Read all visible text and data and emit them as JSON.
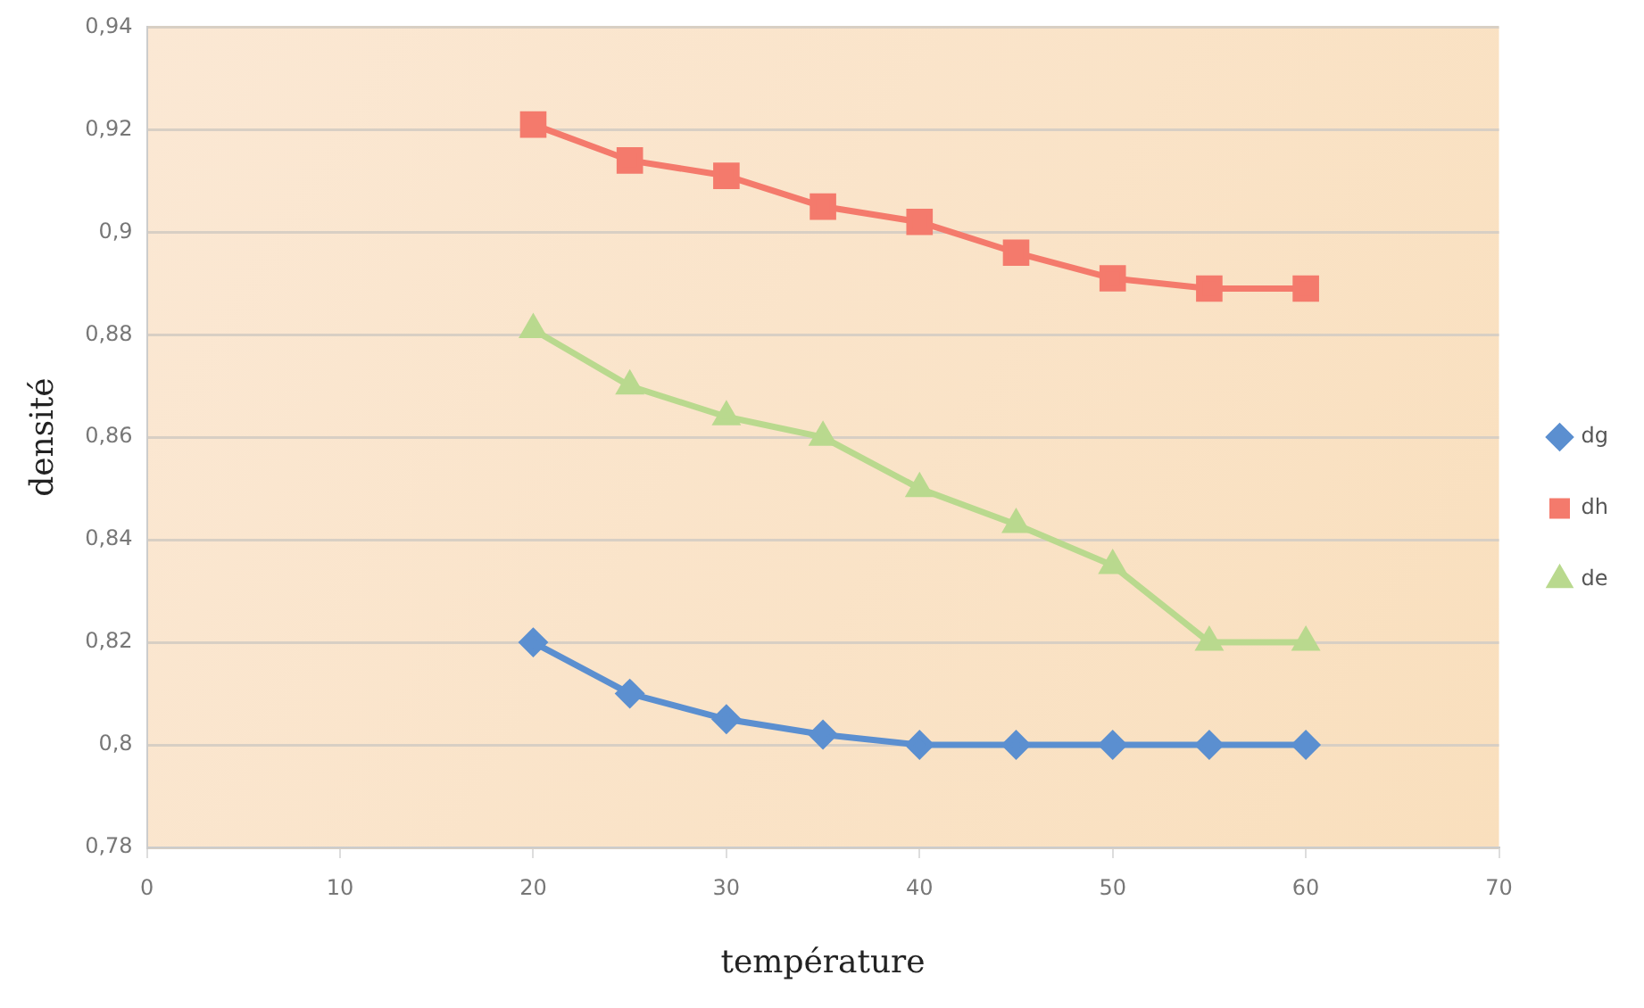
{
  "chart_data": {
    "type": "line",
    "xlabel": "température",
    "ylabel": "densité",
    "x": [
      20,
      25,
      30,
      35,
      40,
      45,
      50,
      55,
      60
    ],
    "series": [
      {
        "name": "dg",
        "color": "#5b8fd0",
        "marker": "diamond",
        "values": [
          0.82,
          0.81,
          0.805,
          0.802,
          0.8,
          0.8,
          0.8,
          0.8,
          0.8
        ]
      },
      {
        "name": "dh",
        "color": "#f47a6c",
        "marker": "square",
        "values": [
          0.921,
          0.914,
          0.911,
          0.905,
          0.902,
          0.896,
          0.891,
          0.889,
          0.889
        ]
      },
      {
        "name": "de",
        "color": "#b9d98e",
        "marker": "triangle",
        "values": [
          0.881,
          0.87,
          0.864,
          0.86,
          0.85,
          0.843,
          0.835,
          0.82,
          0.82
        ]
      }
    ],
    "xlim": [
      0,
      70
    ],
    "xticks": [
      0,
      10,
      20,
      30,
      40,
      50,
      60,
      70
    ],
    "ylim": [
      0.78,
      0.94
    ],
    "yticks": [
      {
        "value": 0.78,
        "label": "0,78"
      },
      {
        "value": 0.8,
        "label": "0,8"
      },
      {
        "value": 0.82,
        "label": "0,82"
      },
      {
        "value": 0.84,
        "label": "0,84"
      },
      {
        "value": 0.86,
        "label": "0,86"
      },
      {
        "value": 0.88,
        "label": "0,88"
      },
      {
        "value": 0.9,
        "label": "0,9"
      },
      {
        "value": 0.92,
        "label": "0,92"
      },
      {
        "value": 0.94,
        "label": "0,94"
      }
    ],
    "grid": "y",
    "legend": "right"
  }
}
